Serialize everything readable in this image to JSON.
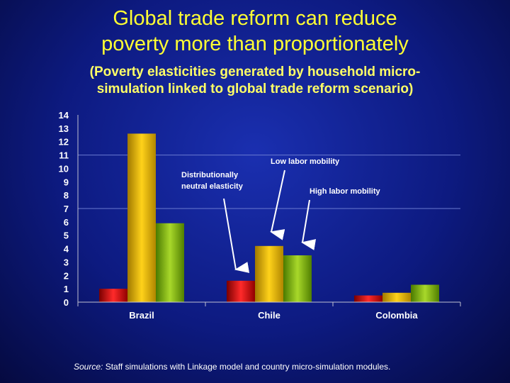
{
  "slide": {
    "title_line1": "Global trade reform can reduce",
    "title_line2": "poverty more than proportionately",
    "subtitle_line1": "(Poverty elasticities generated by household micro-",
    "subtitle_line2": "simulation linked to global trade reform scenario)",
    "source_label": "Source:",
    "source_text": " Staff simulations with Linkage model and country micro-simulation modules."
  },
  "chart_data": {
    "type": "bar",
    "categories": [
      "Brazil",
      "Chile",
      "Colombia"
    ],
    "series": [
      {
        "name": "Distributionally neutral elasticity",
        "values": [
          1.0,
          1.6,
          0.5
        ],
        "color": "#dd1111"
      },
      {
        "name": "Low labor mobility",
        "values": [
          12.6,
          4.2,
          0.7
        ],
        "color": "#f0c000"
      },
      {
        "name": "High labor mobility",
        "values": [
          5.9,
          3.5,
          1.3
        ],
        "color": "#8dc21f"
      }
    ],
    "ylim": [
      0,
      14
    ],
    "yticks": [
      "0",
      "1",
      "2",
      "3",
      "4",
      "5",
      "6",
      "7",
      "8",
      "9",
      "10",
      "11",
      "12",
      "13",
      "14"
    ],
    "annotations": [
      {
        "text_line1": "Distributionally",
        "text_line2": "neutral elasticity"
      },
      {
        "text_line1": "Low labor mobility",
        "text_line2": ""
      },
      {
        "text_line1": "High labor mobility",
        "text_line2": ""
      }
    ],
    "grid": true,
    "gridlines_at": [
      7,
      11
    ]
  }
}
